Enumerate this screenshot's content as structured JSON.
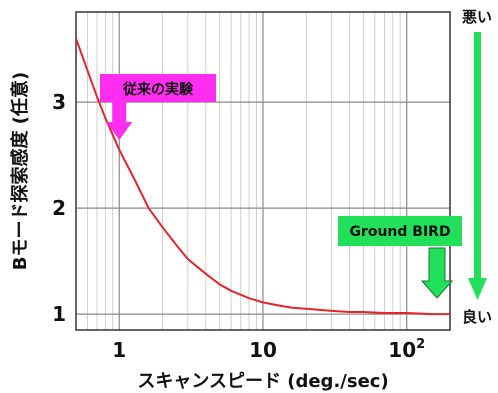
{
  "chart_data": {
    "type": "line",
    "xscale": "log",
    "xlim": [
      0.5,
      200
    ],
    "ylim": [
      0.85,
      3.85
    ],
    "grid": true,
    "xlabel": "スキャンスピード (deg./sec)",
    "ylabel": "Bモード探索感度 (任意)",
    "xticks": [
      {
        "value": 1,
        "label": "1"
      },
      {
        "value": 10,
        "label": "10"
      },
      {
        "value": 100,
        "label": "10",
        "sup": "2"
      }
    ],
    "yticks": [
      {
        "value": 1,
        "label": "1"
      },
      {
        "value": 2,
        "label": "2"
      },
      {
        "value": 3,
        "label": "3"
      }
    ],
    "series": [
      {
        "color": "#e8242a",
        "x": [
          0.5,
          0.6,
          0.7,
          0.8,
          1,
          1.3,
          1.6,
          2,
          2.5,
          3,
          4,
          5,
          6,
          8,
          10,
          13,
          16,
          20,
          30,
          40,
          50,
          70,
          100,
          150,
          200
        ],
        "y": [
          3.6,
          3.3,
          3.05,
          2.85,
          2.55,
          2.25,
          2.0,
          1.82,
          1.65,
          1.52,
          1.38,
          1.28,
          1.22,
          1.15,
          1.11,
          1.08,
          1.06,
          1.05,
          1.03,
          1.02,
          1.02,
          1.01,
          1.01,
          1.0,
          1.0
        ]
      }
    ],
    "annotations": [
      {
        "text": "従来の実験",
        "bg": "#ff2df0",
        "arrow_color": "#ff2df0",
        "x": 1.0
      },
      {
        "text": "Ground BIRD",
        "bg": "#22e05a",
        "arrow_color": "#22e05a",
        "x": 180
      }
    ],
    "side_scale": {
      "top_label": "悪い",
      "bottom_label": "良い",
      "color": "#22e05a"
    }
  }
}
